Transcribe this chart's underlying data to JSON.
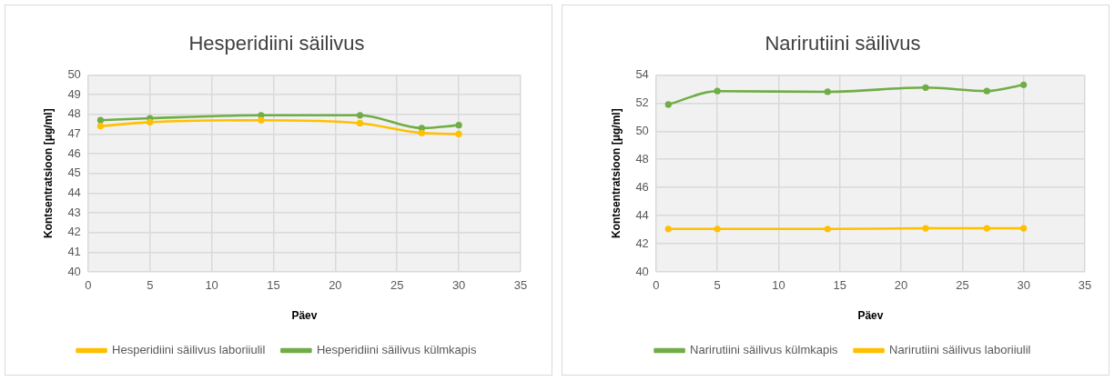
{
  "chart_data": [
    {
      "type": "line",
      "title": "Hesperidiini säilivus",
      "xlabel": "Päev",
      "ylabel": "Kontsentratsioon [μg/ml]",
      "x": [
        1,
        5,
        14,
        22,
        27,
        30
      ],
      "xlim": [
        0,
        35
      ],
      "xticks": [
        0,
        5,
        10,
        15,
        20,
        25,
        30,
        35
      ],
      "ylim": [
        40,
        50
      ],
      "yticks": [
        40,
        41,
        42,
        43,
        44,
        45,
        46,
        47,
        48,
        49,
        50
      ],
      "grid": true,
      "legend": "bottom",
      "marker": "circle",
      "series": [
        {
          "name": "Hesperidiini säilivus laboriiulil",
          "color": "#ffc000",
          "values": [
            47.4,
            47.6,
            47.7,
            47.55,
            47.05,
            47.0
          ]
        },
        {
          "name": "Hesperidiini säilivus külmkapis",
          "color": "#70ad47",
          "values": [
            47.7,
            47.8,
            47.95,
            47.95,
            47.3,
            47.45
          ]
        }
      ]
    },
    {
      "type": "line",
      "title": "Narirutiini säilivus",
      "xlabel": "Päev",
      "ylabel": "Kontsentratsioon [μg/ml]",
      "x": [
        1,
        5,
        14,
        22,
        27,
        30
      ],
      "xlim": [
        0,
        35
      ],
      "xticks": [
        0,
        5,
        10,
        15,
        20,
        25,
        30,
        35
      ],
      "ylim": [
        40,
        54
      ],
      "yticks": [
        40,
        42,
        44,
        46,
        48,
        50,
        52,
        54
      ],
      "grid": true,
      "legend": "bottom",
      "marker": "circle",
      "series": [
        {
          "name": "Narirutiini säilivus külmkapis",
          "color": "#70ad47",
          "values": [
            51.9,
            52.85,
            52.8,
            53.1,
            52.85,
            53.3
          ]
        },
        {
          "name": "Narirutiini säilivus laboriiulil",
          "color": "#ffc000",
          "values": [
            43.05,
            43.05,
            43.05,
            43.1,
            43.1,
            43.1
          ]
        }
      ]
    }
  ]
}
